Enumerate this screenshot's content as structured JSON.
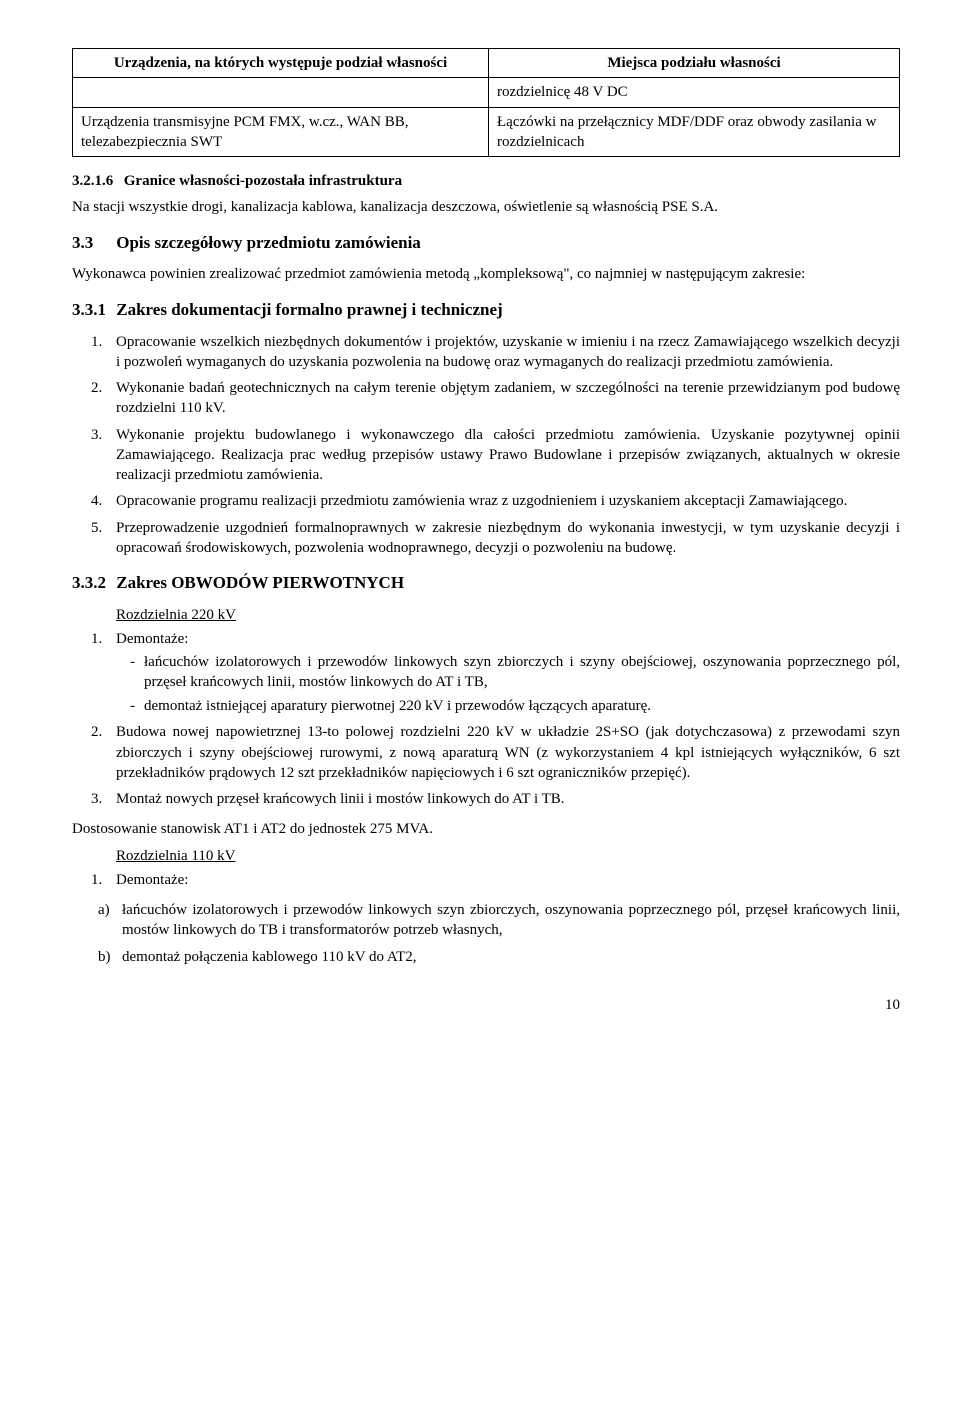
{
  "table": {
    "head_left": "Urządzenia, na których występuje podział własności",
    "head_right": "Miejsca podziału własności",
    "row1_left": "",
    "row1_right": "rozdzielnicę 48 V DC",
    "row2_left": "Urządzenia transmisyjne PCM FMX, w.cz., WAN BB, telezabezpiecznia SWT",
    "row2_right": "Łączówki na przełącznicy MDF/DDF oraz obwody zasilania w rozdzielnicach"
  },
  "s3216": {
    "num": "3.2.1.6",
    "title": "Granice własności-pozostała infrastruktura",
    "body": "Na stacji wszystkie drogi, kanalizacja kablowa, kanalizacja deszczowa, oświetlenie są własnością PSE S.A."
  },
  "s33": {
    "num": "3.3",
    "title": "Opis szczegółowy przedmiotu zamówienia",
    "intro": "Wykonawca powinien zrealizować przedmiot zamówienia metodą „kompleksową\", co najmniej w następującym zakresie:"
  },
  "s331": {
    "num": "3.3.1",
    "title": "Zakres dokumentacji formalno prawnej i technicznej",
    "items": [
      "Opracowanie wszelkich niezbędnych dokumentów i projektów, uzyskanie w imieniu i na rzecz Zamawiającego wszelkich decyzji i pozwoleń wymaganych do uzyskania pozwolenia na budowę oraz wymaganych do realizacji przedmiotu zamówienia.",
      "Wykonanie badań geotechnicznych na całym terenie objętym zadaniem, w szczególności na terenie przewidzianym pod budowę rozdzielni 110 kV.",
      "Wykonanie projektu budowlanego i wykonawczego dla całości przedmiotu zamówienia. Uzyskanie pozytywnej opinii Zamawiającego. Realizacja prac według przepisów ustawy Prawo Budowlane i przepisów związanych, aktualnych w okresie realizacji przedmiotu zamówienia.",
      "Opracowanie programu realizacji przedmiotu zamówienia wraz z uzgodnieniem i uzyskaniem akceptacji Zamawiającego.",
      "Przeprowadzenie uzgodnień formalnoprawnych w zakresie niezbędnym do wykonania inwestycji, w tym uzyskanie decyzji i opracowań środowiskowych, pozwolenia wodnoprawnego, decyzji o pozwoleniu na budowę."
    ]
  },
  "s332": {
    "num": "3.3.2",
    "title": "Zakres OBWODÓW PIERWOTNYCH",
    "sub220": "Rozdzielnia 220 kV",
    "item220_1": "Demontaże:",
    "dash220": [
      "łańcuchów izolatorowych i przewodów linkowych szyn zbiorczych i szyny obejściowej, oszynowania poprzecznego pól, przęseł krańcowych linii, mostów linkowych do AT i TB,",
      "demontaż istniejącej aparatury pierwotnej 220 kV i przewodów łączących aparaturę."
    ],
    "item220_2": "Budowa nowej napowietrznej 13-to polowej rozdzielni 220 kV w układzie 2S+SO (jak dotychczasowa) z przewodami szyn zbiorczych i szyny obejściowej rurowymi, z nową aparaturą WN (z wykorzystaniem 4 kpl istniejących wyłączników, 6 szt przekładników prądowych 12 szt przekładników napięciowych i 6 szt ograniczników przepięć).",
    "item220_3": "Montaż nowych przęseł krańcowych linii i mostów linkowych do AT i TB.",
    "par_after": "Dostosowanie stanowisk AT1 i AT2 do jednostek 275 MVA.",
    "sub110": "Rozdzielnia 110 kV",
    "item110_1": "Demontaże:",
    "letters110": {
      "a": "łańcuchów izolatorowych i przewodów linkowych szyn zbiorczych, oszynowania poprzecznego pól, przęseł krańcowych linii, mostów linkowych do TB i transformatorów potrzeb własnych,",
      "b": "demontaż połączenia kablowego 110 kV do AT2,"
    }
  },
  "page_number": "10"
}
